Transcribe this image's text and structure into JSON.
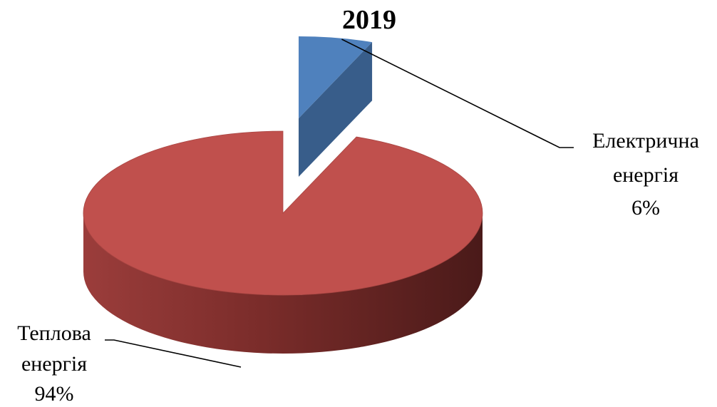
{
  "chart_data": {
    "type": "pie",
    "title": "2019",
    "categories": [
      "Електрична енергія",
      "Теплова енергія"
    ],
    "values": [
      6,
      94
    ],
    "unit": "%",
    "style": "3d-exploded",
    "labels": [
      {
        "lines": [
          "Електрична",
          "енергія",
          "6%"
        ]
      },
      {
        "lines": [
          "Теплова",
          "енергія",
          "94%"
        ]
      }
    ],
    "colors": {
      "electric_top": "#4f81bd",
      "electric_side": "#385d8a",
      "thermal_top": "#c0504d",
      "thermal_side_light": "#9b3d3b",
      "thermal_side_dark": "#4a1a19",
      "leader": "#000000"
    }
  }
}
